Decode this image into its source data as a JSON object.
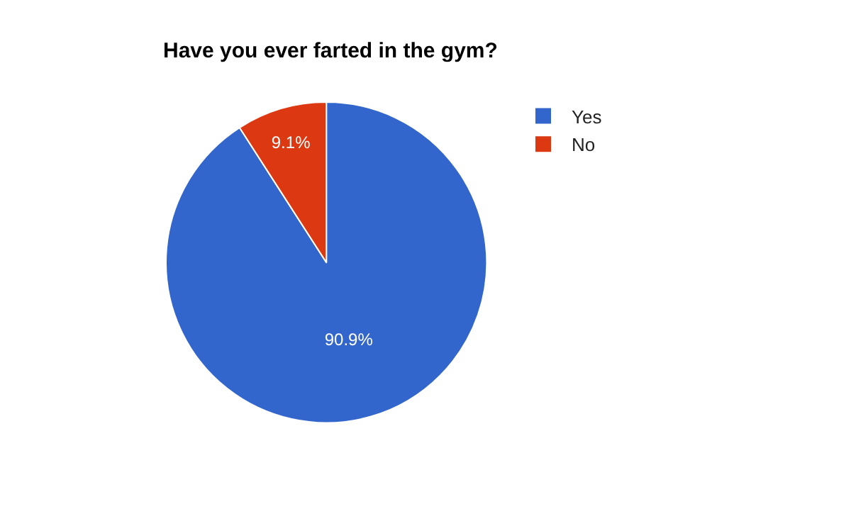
{
  "chart_data": {
    "type": "pie",
    "title": "Have you ever farted in the gym?",
    "categories": [
      "Yes",
      "No"
    ],
    "values": [
      90.9,
      9.1
    ],
    "colors": [
      "#3366cc",
      "#dc3912"
    ],
    "value_labels": [
      "90.9%",
      "9.1%"
    ],
    "legend": "right"
  }
}
